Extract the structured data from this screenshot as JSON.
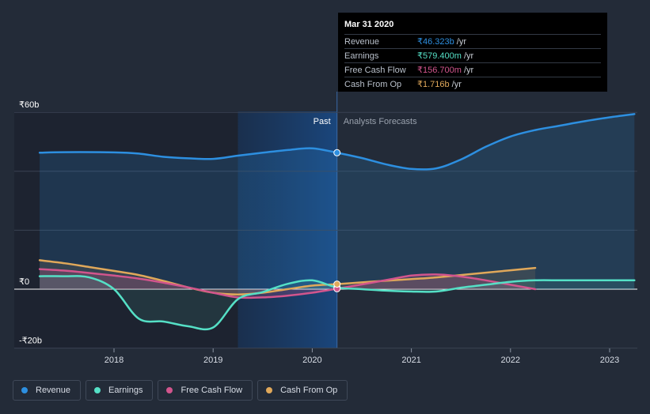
{
  "chart_data": {
    "type": "line",
    "y_ticks": [
      "₹60b",
      "₹0",
      "-₹20b"
    ],
    "y_tick_values": [
      60,
      0,
      -20
    ],
    "ylim": [
      -20,
      60
    ],
    "x_ticks": [
      "2018",
      "2019",
      "2020",
      "2021",
      "2022",
      "2023"
    ],
    "xlim": [
      2017.0,
      2023.25
    ],
    "past_label": "Past",
    "forecast_label": "Analysts Forecasts",
    "past_boundary": 2020.25,
    "series": [
      {
        "name": "Revenue",
        "color": "#2d8fe0",
        "x": [
          2017.25,
          2017.5,
          2018.0,
          2018.25,
          2018.5,
          2018.75,
          2019.0,
          2019.25,
          2019.5,
          2019.75,
          2020.0,
          2020.25,
          2020.5,
          2020.75,
          2021.0,
          2021.25,
          2021.5,
          2021.75,
          2022.0,
          2022.25,
          2022.5,
          2022.75,
          2023.0,
          2023.25
        ],
        "values": [
          46.3,
          46.5,
          46.4,
          46.0,
          44.9,
          44.4,
          44.2,
          45.3,
          46.3,
          47.2,
          47.8,
          46.3,
          44.5,
          42.3,
          40.8,
          41.0,
          44.0,
          48.3,
          51.8,
          54.0,
          55.5,
          57.0,
          58.3,
          59.4
        ]
      },
      {
        "name": "Earnings",
        "color": "#55e0c6",
        "x": [
          2017.25,
          2017.5,
          2017.75,
          2018.0,
          2018.25,
          2018.5,
          2018.75,
          2019.0,
          2019.25,
          2019.5,
          2019.75,
          2020.0,
          2020.25,
          2020.5,
          2020.75,
          2021.0,
          2021.25,
          2021.5,
          2021.75,
          2022.0,
          2022.25,
          2022.5,
          2022.75,
          2023.0,
          2023.25
        ],
        "values": [
          4.4,
          4.4,
          4.0,
          0.0,
          -10.0,
          -11.0,
          -12.6,
          -13.0,
          -3.4,
          -1.0,
          1.8,
          3.0,
          0.58,
          0.0,
          -0.5,
          -0.8,
          -0.8,
          0.5,
          1.5,
          2.5,
          3.0,
          3.0,
          3.0,
          3.0,
          3.0
        ]
      },
      {
        "name": "Free Cash Flow",
        "color": "#d2558d",
        "x": [
          2017.25,
          2017.5,
          2017.75,
          2018.0,
          2018.25,
          2018.5,
          2018.75,
          2019.0,
          2019.25,
          2019.5,
          2019.75,
          2020.0,
          2020.25,
          2020.5,
          2020.75,
          2021.0,
          2021.25,
          2021.5,
          2021.75,
          2022.0,
          2022.25
        ],
        "values": [
          6.8,
          6.3,
          5.5,
          4.6,
          3.6,
          2.2,
          0.6,
          -1.2,
          -2.8,
          -2.8,
          -2.2,
          -1.2,
          0.16,
          1.6,
          3.1,
          4.6,
          5.0,
          4.3,
          3.0,
          1.5,
          0.0
        ]
      },
      {
        "name": "Cash From Op",
        "color": "#e0a85a",
        "x": [
          2017.25,
          2017.5,
          2017.75,
          2018.0,
          2018.25,
          2018.5,
          2018.75,
          2019.0,
          2019.25,
          2019.5,
          2019.75,
          2020.0,
          2020.25,
          2020.5,
          2020.75,
          2021.0,
          2021.25,
          2021.5,
          2021.75,
          2022.0,
          2022.25
        ],
        "values": [
          9.8,
          8.8,
          7.5,
          6.2,
          4.8,
          2.8,
          0.6,
          -1.2,
          -1.8,
          -1.2,
          0.0,
          1.2,
          1.72,
          2.3,
          2.9,
          3.4,
          4.0,
          4.8,
          5.6,
          6.4,
          7.2
        ]
      }
    ],
    "tooltip": {
      "date": "Mar 31 2020",
      "rows": [
        {
          "label": "Revenue",
          "value": "₹46.323b",
          "unit": "/yr",
          "color": "#2d8fe0"
        },
        {
          "label": "Earnings",
          "value": "₹579.400m",
          "unit": "/yr",
          "color": "#55e0c6"
        },
        {
          "label": "Free Cash Flow",
          "value": "₹156.700m",
          "unit": "/yr",
          "color": "#d2558d"
        },
        {
          "label": "Cash From Op",
          "value": "₹1.716b",
          "unit": "/yr",
          "color": "#e0a85a"
        }
      ]
    },
    "legend": [
      {
        "label": "Revenue",
        "color": "#2d8fe0"
      },
      {
        "label": "Earnings",
        "color": "#55e0c6"
      },
      {
        "label": "Free Cash Flow",
        "color": "#d2558d"
      },
      {
        "label": "Cash From Op",
        "color": "#e0a85a"
      }
    ]
  }
}
